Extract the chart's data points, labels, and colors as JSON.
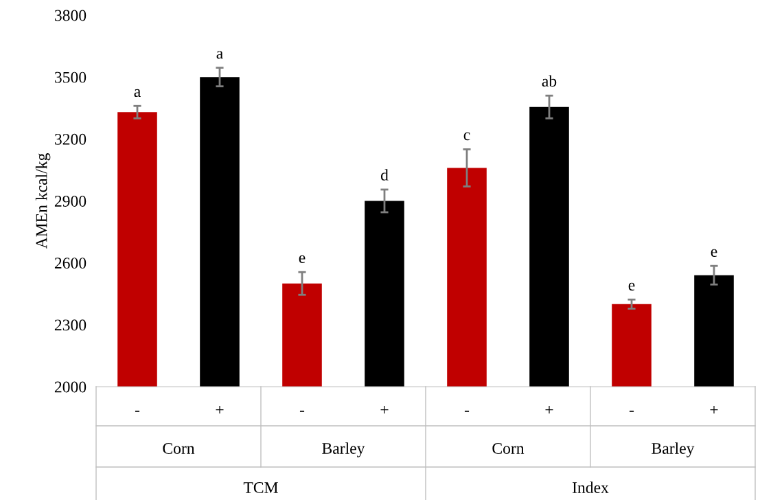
{
  "chart_data": {
    "type": "bar",
    "ylabel": "AMEn kcal/kg",
    "categories": [
      "-",
      "+",
      "-",
      "+",
      "-",
      "+",
      "-",
      "+"
    ],
    "values": [
      3330,
      3500,
      2500,
      2900,
      3060,
      3355,
      2400,
      2540
    ],
    "errors": [
      30,
      45,
      55,
      55,
      90,
      55,
      22,
      45
    ],
    "colors": [
      "#c00000",
      "#000000",
      "#c00000",
      "#000000",
      "#c00000",
      "#000000",
      "#c00000",
      "#000000"
    ],
    "value_labels": [
      "a",
      "a",
      "e",
      "d",
      "c",
      "ab",
      "e",
      "e"
    ],
    "annotations": [
      "Corn",
      "Barley",
      "Corn",
      "Barley",
      "TCM",
      "Index"
    ],
    "ylim": [
      2000,
      3800
    ],
    "yticks": [
      2000,
      2300,
      2600,
      2900,
      3200,
      3500,
      3800
    ],
    "grid": false,
    "legend": false
  }
}
